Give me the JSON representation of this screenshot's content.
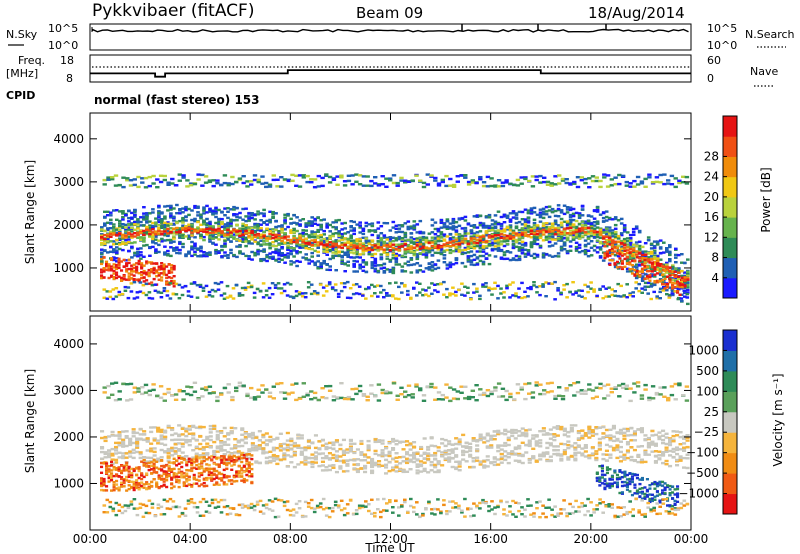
{
  "header": {
    "radar": "Pykkvibaer (fitACF)",
    "beam": "Beam 09",
    "date": "18/Aug/2014"
  },
  "strip_labels": {
    "nsky": "N.Sky",
    "nsearch": "N.Search",
    "freq_line1": "Freq.",
    "freq_line2": "[MHz]",
    "nave": "Nave",
    "cpid": "CPID",
    "cpid_value": "normal (fast stereo) 153"
  },
  "colors": {
    "power": [
      "#1a1aff",
      "#1f5fb4",
      "#2e8b57",
      "#66b34d",
      "#b9d23c",
      "#f0c814",
      "#f08c0a",
      "#f05014",
      "#e61414"
    ],
    "velocity": [
      "#e61414",
      "#f05a14",
      "#f08c14",
      "#f5b43c",
      "#c8c8c0",
      "#5aa05a",
      "#2e8b57",
      "#1f6fa8",
      "#1a2fd0"
    ]
  },
  "chart_data": [
    {
      "type": "line",
      "name": "noise-strip",
      "left_ticks": [
        "10^5",
        "10^0"
      ],
      "right_ticks": [
        "10^5",
        "10^0"
      ]
    },
    {
      "type": "line",
      "name": "frequency-strip",
      "left_ticks": [
        "18",
        "8"
      ],
      "right_ticks": [
        "60",
        "0"
      ],
      "freq_steps": [
        {
          "x0": 0,
          "x1": 2.6,
          "y": 11.0
        },
        {
          "x0": 2.6,
          "x1": 3.0,
          "y": 9.5
        },
        {
          "x0": 3.0,
          "x1": 7.9,
          "y": 11.0
        },
        {
          "x0": 7.9,
          "x1": 18.0,
          "y": 12.5
        },
        {
          "x0": 18.0,
          "x1": 24.0,
          "y": 11.0
        }
      ]
    },
    {
      "type": "heatmap",
      "name": "power",
      "ylabel": "Slant Range [km]",
      "ylim": [
        0,
        4600
      ],
      "yticks": [
        1000,
        2000,
        3000,
        4000
      ],
      "colorbar": {
        "label": "Power [dB]",
        "ticks": [
          "4",
          "8",
          "12",
          "16",
          "20",
          "24",
          "28"
        ]
      }
    },
    {
      "type": "heatmap",
      "name": "velocity",
      "ylabel": "Slant Range [km]",
      "ylim": [
        0,
        4600
      ],
      "yticks": [
        1000,
        2000,
        3000,
        4000
      ],
      "xlabel": "Time UT",
      "xticks": [
        "00:00",
        "04:00",
        "08:00",
        "12:00",
        "16:00",
        "20:00",
        "00:00"
      ],
      "colorbar": {
        "label": "Velocity [m s⁻¹]",
        "ticks": [
          "1000",
          "500",
          "100",
          "25",
          "−25",
          "−100",
          "−500",
          "−1000"
        ]
      }
    }
  ]
}
